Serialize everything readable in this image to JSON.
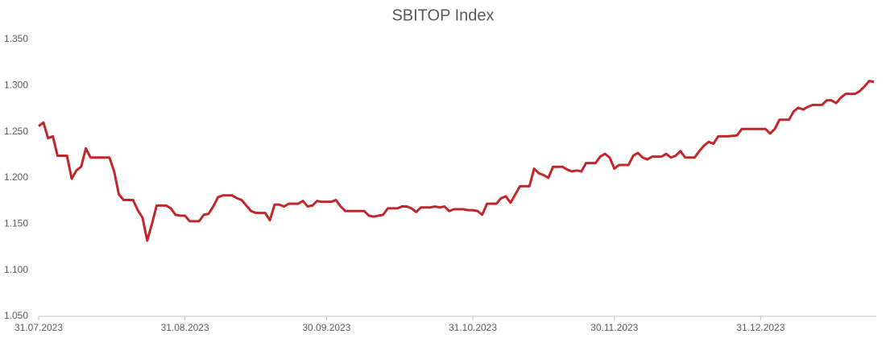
{
  "chart_data": {
    "type": "line",
    "title": "SBITOP Index",
    "x": [
      "31.07.2023",
      "01.08.2023",
      "02.08.2023",
      "03.08.2023",
      "04.08.2023",
      "06.08.2023",
      "07.08.2023",
      "08.08.2023",
      "09.08.2023",
      "10.08.2023",
      "11.08.2023",
      "15.08.2023",
      "16.08.2023",
      "17.08.2023",
      "18.08.2023",
      "20.08.2023",
      "21.08.2023",
      "22.08.2023",
      "23.08.2023",
      "24.08.2023",
      "25.08.2023",
      "27.08.2023",
      "28.08.2023",
      "29.08.2023",
      "30.08.2023",
      "31.08.2023",
      "01.09.2023",
      "03.09.2023",
      "04.09.2023",
      "05.09.2023",
      "06.09.2023",
      "07.09.2023",
      "08.09.2023",
      "10.09.2023",
      "11.09.2023",
      "12.09.2023",
      "13.09.2023",
      "14.09.2023",
      "15.09.2023",
      "17.09.2023",
      "18.09.2023",
      "19.09.2023",
      "20.09.2023",
      "21.09.2023",
      "22.09.2023",
      "24.09.2023",
      "25.09.2023",
      "26.09.2023",
      "27.09.2023",
      "28.09.2023",
      "29.09.2023",
      "01.10.2023",
      "02.10.2023",
      "03.10.2023",
      "04.10.2023",
      "06.10.2023",
      "08.10.2023",
      "09.10.2023",
      "10.10.2023",
      "11.10.2023",
      "12.10.2023",
      "13.10.2023",
      "15.10.2023",
      "16.10.2023",
      "17.10.2023",
      "18.10.2023",
      "19.10.2023",
      "20.10.2023",
      "22.10.2023",
      "23.10.2023",
      "24.10.2023",
      "25.10.2023",
      "26.10.2023",
      "27.10.2023",
      "29.10.2023",
      "30.10.2023",
      "31.10.2023",
      "01.11.2023",
      "02.11.2023",
      "03.11.2023",
      "05.11.2023",
      "06.11.2023",
      "07.11.2023",
      "08.11.2023",
      "09.11.2023",
      "10.11.2023",
      "12.11.2023",
      "13.11.2023",
      "14.11.2023",
      "15.11.2023",
      "16.11.2023",
      "17.11.2023",
      "19.11.2023",
      "20.11.2023",
      "21.11.2023",
      "22.11.2023",
      "23.11.2023",
      "24.11.2023",
      "26.11.2023",
      "27.11.2023",
      "28.11.2023",
      "29.11.2023",
      "30.11.2023",
      "01.12.2023",
      "03.12.2023",
      "04.12.2023",
      "05.12.2023",
      "06.12.2023",
      "07.12.2023",
      "08.12.2023",
      "10.12.2023",
      "11.12.2023",
      "12.12.2023",
      "13.12.2023",
      "14.12.2023",
      "15.12.2023",
      "17.12.2023",
      "18.12.2023",
      "19.12.2023",
      "20.12.2023",
      "21.12.2023",
      "22.12.2023",
      "24.12.2023",
      "26.12.2023",
      "27.12.2023",
      "28.12.2023",
      "29.12.2023",
      "31.12.2023",
      "01.01.2024",
      "02.01.2024",
      "03.01.2024",
      "04.01.2024",
      "05.01.2024",
      "06.01.2024",
      "07.01.2024",
      "08.01.2024",
      "09.01.2024",
      "10.01.2024",
      "11.01.2024",
      "13.01.2024",
      "14.01.2024",
      "15.01.2024",
      "16.01.2024",
      "17.01.2024",
      "18.01.2024",
      "20.01.2024",
      "21.01.2024",
      "22.01.2024",
      "23.01.2024",
      "24.01.2024"
    ],
    "series": [
      {
        "name": "SBITOP",
        "color": "#c0272d",
        "values": [
          1.256,
          1.26,
          1.243,
          1.245,
          1.224,
          1.224,
          1.199,
          1.208,
          1.212,
          1.232,
          1.222,
          1.222,
          1.207,
          1.182,
          1.176,
          1.176,
          1.165,
          1.157,
          1.132,
          1.15,
          1.17,
          1.17,
          1.167,
          1.16,
          1.159,
          1.159,
          1.153,
          1.153,
          1.16,
          1.161,
          1.169,
          1.179,
          1.181,
          1.181,
          1.178,
          1.176,
          1.17,
          1.164,
          1.162,
          1.162,
          1.154,
          1.171,
          1.171,
          1.169,
          1.172,
          1.172,
          1.175,
          1.169,
          1.17,
          1.175,
          1.174,
          1.174,
          1.176,
          1.169,
          1.164,
          1.164,
          1.164,
          1.159,
          1.158,
          1.159,
          1.16,
          1.167,
          1.167,
          1.169,
          1.169,
          1.167,
          1.163,
          1.168,
          1.168,
          1.169,
          1.168,
          1.169,
          1.164,
          1.166,
          1.166,
          1.165,
          1.165,
          1.164,
          1.16,
          1.172,
          1.172,
          1.178,
          1.18,
          1.173,
          1.182,
          1.191,
          1.191,
          1.21,
          1.205,
          1.203,
          1.2,
          1.212,
          1.212,
          1.209,
          1.207,
          1.208,
          1.207,
          1.216,
          1.216,
          1.223,
          1.226,
          1.222,
          1.21,
          1.214,
          1.214,
          1.224,
          1.227,
          1.222,
          1.22,
          1.223,
          1.223,
          1.226,
          1.222,
          1.224,
          1.229,
          1.222,
          1.222,
          1.229,
          1.235,
          1.239,
          1.237,
          1.245,
          1.245,
          1.246,
          1.253,
          1.253,
          1.253,
          1.253,
          1.253,
          1.248,
          1.253,
          1.263,
          1.263,
          1.263,
          1.272,
          1.276,
          1.274,
          1.277,
          1.279,
          1.279,
          1.284,
          1.284,
          1.281,
          1.287,
          1.291,
          1.291,
          1.294,
          1.299,
          1.305,
          1.304
        ]
      }
    ],
    "xlim": [
      "31.07.2023",
      "24.01.2024"
    ],
    "xticks": [
      "31.07.2023",
      "31.08.2023",
      "30.09.2023",
      "31.10.2023",
      "30.11.2023",
      "31.12.2023"
    ],
    "ylim": [
      1.05,
      1.35
    ],
    "yticks": [
      {
        "value": 1.05,
        "label": "1.050"
      },
      {
        "value": 1.1,
        "label": "1.100"
      },
      {
        "value": 1.15,
        "label": "1.150"
      },
      {
        "value": 1.2,
        "label": "1.200"
      },
      {
        "value": 1.25,
        "label": "1.250"
      },
      {
        "value": 1.3,
        "label": "1.300"
      },
      {
        "value": 1.35,
        "label": "1.350"
      }
    ],
    "grid": false
  }
}
